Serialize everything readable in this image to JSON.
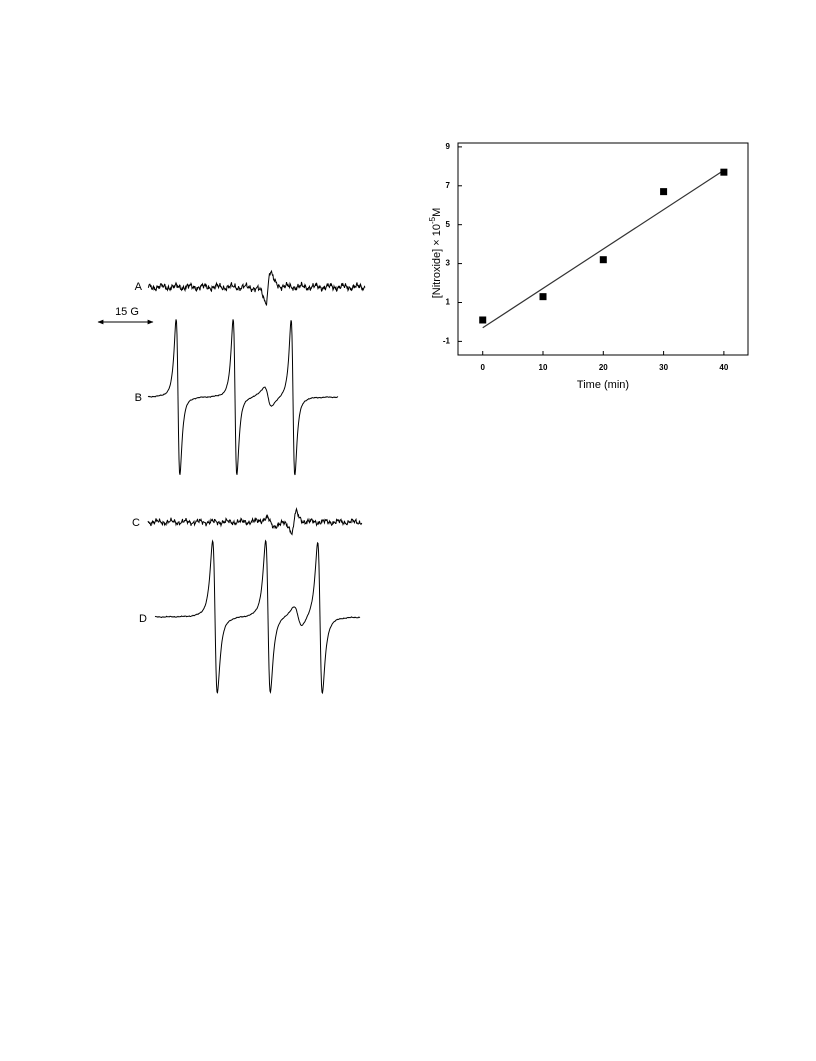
{
  "spectra": {
    "labels": [
      "A",
      "B",
      "C",
      "D"
    ],
    "scale_label": "15 G"
  },
  "chart_data": {
    "type": "scatter",
    "xlabel": "Time (min)",
    "ylabel": {
      "text": "[Nitroxide] × 10",
      "sup": "-5",
      "unit": "M"
    },
    "x": [
      0,
      10,
      20,
      30,
      40
    ],
    "values": [
      0.1,
      1.3,
      3.2,
      6.7,
      7.7
    ],
    "color": "#000000",
    "fit": {
      "x": [
        0,
        40
      ],
      "values": [
        -0.3,
        7.8
      ]
    },
    "xlim": [
      -4.1,
      44
    ],
    "ylim": [
      -1.7,
      9.2
    ],
    "xticks": [
      0,
      10,
      20,
      30,
      40
    ],
    "yticks": [
      -1,
      1,
      3,
      5,
      7,
      9
    ]
  }
}
